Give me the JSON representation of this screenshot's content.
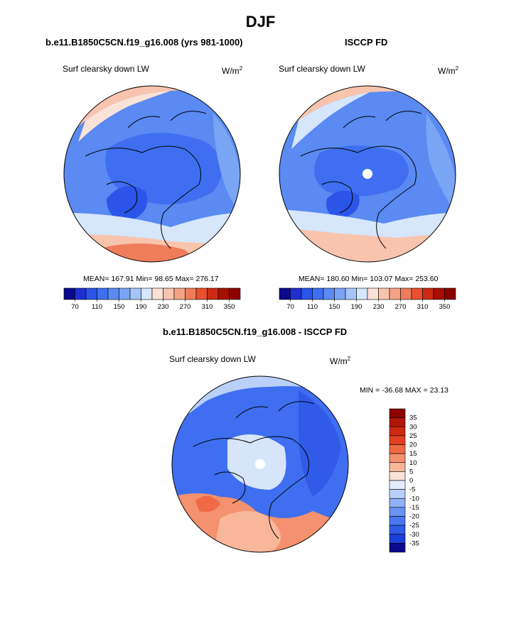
{
  "page": {
    "title": "DJF",
    "colors": {
      "blue_dark": "#0a0a8c",
      "blue": "#3f6ff0",
      "red": "#e9502f",
      "red_dark": "#8c0000"
    }
  },
  "chart_data": [
    {
      "type": "polar-contour-map",
      "title": "b.e11.B1850C5CN.f19_g16.008 (yrs 981-1000)",
      "variable": "Surf clearsky down LW",
      "units_base": "W/m",
      "units_exp": "2",
      "stats": {
        "mean": "167.91",
        "min": "98.65",
        "max": "276.17"
      },
      "colorbar_ticks": [
        "70",
        "110",
        "150",
        "190",
        "230",
        "270",
        "310",
        "350"
      ],
      "colorbar_colors": [
        "#0a0a8c",
        "#1f2fd0",
        "#2b55e8",
        "#3f6ff0",
        "#5a8af2",
        "#7aa5f4",
        "#a6c4f8",
        "#d6e6fb",
        "#fbe2d6",
        "#f8c4ae",
        "#f4a485",
        "#ef7d5c",
        "#e9502f",
        "#cc2a12",
        "#a80e02",
        "#8c0000"
      ]
    },
    {
      "type": "polar-contour-map",
      "title": "ISCCP FD",
      "variable": "Surf clearsky down LW",
      "units_base": "W/m",
      "units_exp": "2",
      "stats": {
        "mean": "180.60",
        "min": "103.07",
        "max": "253.60"
      },
      "colorbar_ticks": [
        "70",
        "110",
        "150",
        "190",
        "230",
        "270",
        "310",
        "350"
      ],
      "colorbar_colors": [
        "#0a0a8c",
        "#1f2fd0",
        "#2b55e8",
        "#3f6ff0",
        "#5a8af2",
        "#7aa5f4",
        "#a6c4f8",
        "#d6e6fb",
        "#fbe2d6",
        "#f8c4ae",
        "#f4a485",
        "#ef7d5c",
        "#e9502f",
        "#cc2a12",
        "#a80e02",
        "#8c0000"
      ]
    },
    {
      "type": "polar-contour-map",
      "title": "b.e11.B1850C5CN.f19_g16.008 - ISCCP FD",
      "variable": "Surf clearsky down LW",
      "units_base": "W/m",
      "units_exp": "2",
      "stats_text": "MIN = -36.68  MAX =  23.13",
      "colorbar_ticks": [
        "35",
        "30",
        "25",
        "20",
        "15",
        "10",
        "5",
        "0",
        "-5",
        "-10",
        "-15",
        "-20",
        "-25",
        "-30",
        "-35"
      ],
      "colorbar_colors": [
        "#8c0000",
        "#b01606",
        "#cc2a12",
        "#e0401f",
        "#ef6a45",
        "#f4916e",
        "#f8b79b",
        "#fbe2d6",
        "#e3eefc",
        "#b9d0f9",
        "#8fb1f5",
        "#6a93f2",
        "#4a78ef",
        "#2f5be8",
        "#1a3ed8",
        "#0a0a8c"
      ]
    }
  ]
}
